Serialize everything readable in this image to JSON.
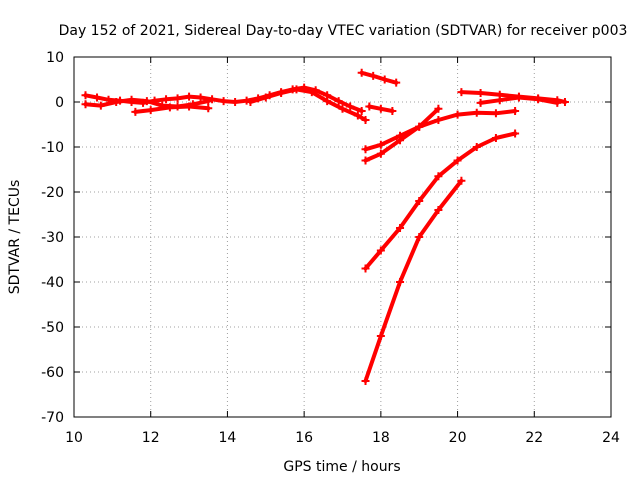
{
  "chart_data": {
    "type": "scatter",
    "title": "Day 152 of 2021, Sidereal Day-to-day VTEC variation (SDTVAR) for receiver p003",
    "xlabel": "GPS time / hours",
    "ylabel": "SDTVAR / TECUs",
    "xlim": [
      10,
      24
    ],
    "ylim": [
      -70,
      10
    ],
    "xticks": [
      10,
      12,
      14,
      16,
      18,
      20,
      22,
      24
    ],
    "yticks": [
      -70,
      -60,
      -50,
      -40,
      -30,
      -20,
      -10,
      0,
      10
    ],
    "grid": true,
    "marker_color": "#ff0000",
    "series": [
      {
        "x": [
          10.3,
          10.6,
          10.9,
          11.2,
          11.5,
          11.8,
          12.1,
          12.4,
          12.7,
          13.0,
          13.3,
          13.6,
          13.9,
          14.2,
          14.5,
          14.8,
          15.1,
          15.4,
          15.7,
          16.0,
          16.3,
          16.6,
          16.9,
          17.2,
          17.5
        ],
        "y": [
          1.5,
          1.0,
          0.5,
          0.3,
          0.0,
          -0.2,
          0.3,
          0.6,
          0.8,
          1.2,
          1.0,
          0.6,
          0.2,
          0.0,
          0.3,
          0.8,
          1.5,
          2.2,
          2.8,
          3.2,
          2.6,
          1.5,
          0.2,
          -1.0,
          -2.0
        ]
      },
      {
        "x": [
          10.3,
          10.7,
          11.1,
          11.5,
          11.9,
          12.3,
          12.7,
          13.1,
          13.5
        ],
        "y": [
          -0.5,
          -0.8,
          0.0,
          0.5,
          0.2,
          -0.8,
          -1.0,
          -0.5,
          0.2
        ]
      },
      {
        "x": [
          11.6,
          12.0,
          12.5,
          13.0,
          13.5
        ],
        "y": [
          -2.2,
          -1.8,
          -1.2,
          -1.0,
          -1.4
        ]
      },
      {
        "x": [
          14.6,
          15.0,
          15.4,
          15.8,
          16.2,
          16.6,
          17.0,
          17.4,
          17.6
        ],
        "y": [
          0.0,
          1.0,
          2.0,
          2.8,
          2.2,
          0.2,
          -1.5,
          -3.0,
          -4.0
        ]
      },
      {
        "x": [
          17.5,
          17.8,
          18.1,
          18.4
        ],
        "y": [
          6.5,
          5.8,
          5.0,
          4.3
        ]
      },
      {
        "x": [
          17.7,
          18.0,
          18.3
        ],
        "y": [
          -1.0,
          -1.5,
          -2.0
        ]
      },
      {
        "x": [
          17.6,
          18.0,
          18.5,
          19.0,
          19.5,
          20.0,
          20.5,
          21.0,
          21.5
        ],
        "y": [
          -10.5,
          -9.5,
          -7.5,
          -5.5,
          -4.0,
          -2.8,
          -2.4,
          -2.5,
          -2.0
        ]
      },
      {
        "x": [
          17.6,
          18.0,
          18.5,
          19.0,
          19.5
        ],
        "y": [
          -13.0,
          -11.5,
          -8.5,
          -5.5,
          -1.5
        ]
      },
      {
        "x": [
          17.6,
          18.0,
          18.5,
          19.0,
          19.5,
          20.0,
          20.5,
          21.0,
          21.5
        ],
        "y": [
          -37.0,
          -33.0,
          -28.0,
          -22.0,
          -16.5,
          -13.0,
          -10.0,
          -8.0,
          -7.0
        ]
      },
      {
        "x": [
          17.6,
          18.0,
          18.5,
          19.0,
          19.5,
          20.1
        ],
        "y": [
          -62.0,
          -52.0,
          -40.0,
          -30.0,
          -24.0,
          -17.5
        ]
      },
      {
        "x": [
          20.1,
          20.6,
          21.1,
          21.6,
          22.1,
          22.6,
          22.8
        ],
        "y": [
          2.2,
          2.0,
          1.6,
          1.2,
          0.8,
          0.4,
          0.0
        ]
      },
      {
        "x": [
          20.6,
          21.1,
          21.6,
          22.1,
          22.6
        ],
        "y": [
          -0.2,
          0.4,
          1.0,
          0.6,
          -0.2
        ]
      }
    ]
  }
}
